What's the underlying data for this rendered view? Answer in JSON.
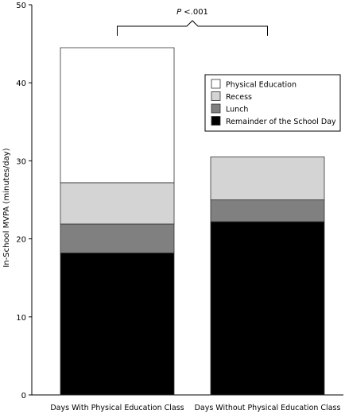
{
  "chart_data": {
    "type": "bar",
    "stacked": true,
    "categories": [
      "Days With Physical Education Class",
      "Days Without Physical Education Class"
    ],
    "series": [
      {
        "name": "Remainder of the School Day",
        "values": [
          18.2,
          22.2
        ],
        "color": "#000000"
      },
      {
        "name": "Lunch",
        "values": [
          3.7,
          2.8
        ],
        "color": "#808080"
      },
      {
        "name": "Recess",
        "values": [
          5.3,
          5.5
        ],
        "color": "#d4d4d4"
      },
      {
        "name": "Physical Education",
        "values": [
          17.3,
          0
        ],
        "color": "#ffffff"
      }
    ],
    "legend_order": [
      "Physical Education",
      "Recess",
      "Lunch",
      "Remainder of the School Day"
    ],
    "ylabel": "In-School MVPA (minutes/day)",
    "xlabel": "",
    "ylim": [
      0,
      50
    ],
    "yticks": [
      0,
      10,
      20,
      30,
      40,
      50
    ],
    "annotation": {
      "italic": "P",
      "text": " <.001"
    },
    "grid": false,
    "legend_position": "top-right"
  }
}
